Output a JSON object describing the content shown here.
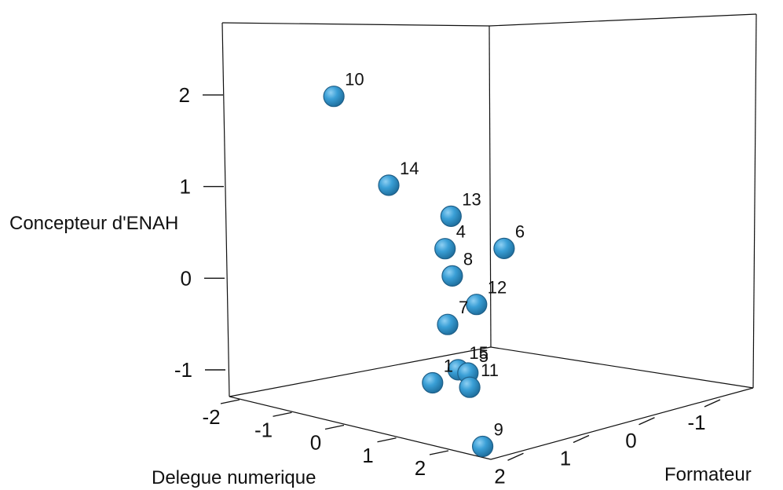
{
  "chart_data": {
    "type": "scatter",
    "dimensions": 3,
    "xlabel": "Formateur",
    "ylabel": "Delegue numerique",
    "zlabel": "Concepteur d'ENAH",
    "x_ticks": [
      "-1",
      "0",
      "1",
      "2"
    ],
    "y_ticks": [
      "-2",
      "-1",
      "0",
      "1",
      "2"
    ],
    "z_ticks": [
      "-1",
      "0",
      "1",
      "2"
    ],
    "x_range": [
      -1.5,
      2.5
    ],
    "y_range": [
      -2.3,
      2.5
    ],
    "z_range": [
      -1.3,
      2.8
    ],
    "marker_color": "#3a9fd6",
    "points": [
      {
        "label": "1",
        "x": 0.31,
        "y": -0.58,
        "z": -0.4
      },
      {
        "label": "4",
        "x": 0.21,
        "y": -0.49,
        "z": 1.07
      },
      {
        "label": "5",
        "x": 0.14,
        "y": -0.21,
        "z": -0.28
      },
      {
        "label": "6",
        "x": -1.17,
        "y": -0.97,
        "z": 0.56
      },
      {
        "label": "7",
        "x": 0.38,
        "y": -0.28,
        "z": 0.32
      },
      {
        "label": "8",
        "x": 0.03,
        "y": -0.56,
        "z": 0.7
      },
      {
        "label": "9",
        "x": 1.57,
        "y": 1.45,
        "z": -0.36
      },
      {
        "label": "10",
        "x": 0.27,
        "y": -2.13,
        "z": 2.49
      },
      {
        "label": "11",
        "x": 1.24,
        "y": 0.92,
        "z": 0.1
      },
      {
        "label": "12",
        "x": -0.4,
        "y": -0.62,
        "z": 0.24
      },
      {
        "label": "13",
        "x": -0.17,
        "y": -0.78,
        "z": 1.26
      },
      {
        "label": "14",
        "x": 0.41,
        "y": -1.15,
        "z": 1.72
      },
      {
        "label": "15",
        "x": 0.1,
        "y": -0.4,
        "z": -0.29
      }
    ]
  }
}
